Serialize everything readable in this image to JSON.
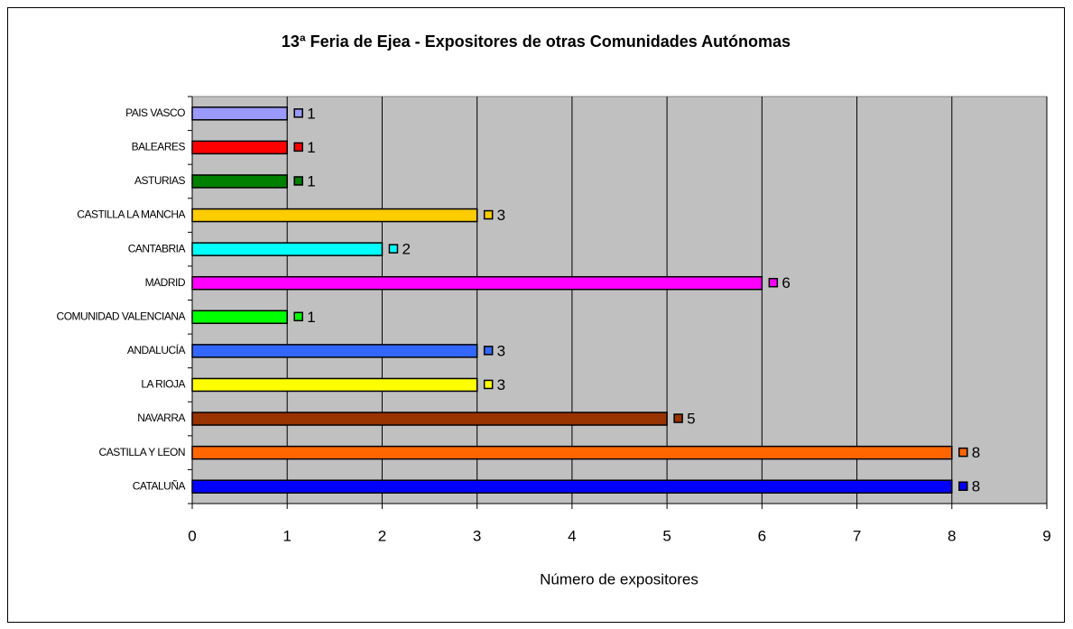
{
  "chart_data": {
    "type": "barh",
    "title": "13ª Feria de Ejea - Expositores de otras Comunidades Autónomas",
    "xlabel": "Número de expositores",
    "categories": [
      "PAIS VASCO",
      "BALEARES",
      "ASTURIAS",
      "CASTILLA LA MANCHA",
      "CANTABRIA",
      "MADRID",
      "COMUNIDAD VALENCIANA",
      "ANDALUCÍA",
      "LA RIOJA",
      "NAVARRA",
      "CASTILLA Y LEON",
      "CATALUÑA"
    ],
    "values": [
      1,
      1,
      1,
      3,
      2,
      6,
      1,
      3,
      3,
      5,
      8,
      8
    ],
    "colors": [
      "#9999ff",
      "#ff0000",
      "#008000",
      "#ffcc00",
      "#00ffff",
      "#ff00ff",
      "#00ff00",
      "#3366ff",
      "#ffff00",
      "#993300",
      "#ff6600",
      "#0000ff"
    ],
    "xlim": [
      0,
      9
    ],
    "xticks": [
      0,
      1,
      2,
      3,
      4,
      5,
      6,
      7,
      8,
      9
    ],
    "grid": true
  }
}
